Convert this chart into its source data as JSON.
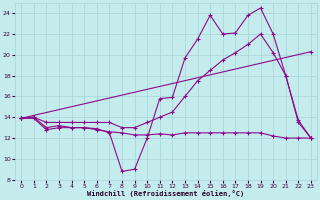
{
  "background_color": "#c5eced",
  "grid_color": "#a8d4d8",
  "line_color": "#8b0a8b",
  "xlim": [
    -0.5,
    23.5
  ],
  "ylim": [
    8,
    25
  ],
  "yticks": [
    8,
    10,
    12,
    14,
    16,
    18,
    20,
    22,
    24
  ],
  "xticks": [
    0,
    1,
    2,
    3,
    4,
    5,
    6,
    7,
    8,
    9,
    10,
    11,
    12,
    13,
    14,
    15,
    16,
    17,
    18,
    19,
    20,
    21,
    22,
    23
  ],
  "xlabel": "Windchill (Refroidissement éolien,°C)",
  "line1_x": [
    0,
    1,
    2,
    3,
    4,
    5,
    6,
    7,
    8,
    9,
    10,
    11,
    12,
    13,
    14,
    15,
    16,
    17,
    18,
    19,
    20,
    21,
    22,
    23
  ],
  "line1_y": [
    13.9,
    14.0,
    13.0,
    13.2,
    13.0,
    13.0,
    12.9,
    12.5,
    8.8,
    9.0,
    12.0,
    15.8,
    15.9,
    19.7,
    21.5,
    23.8,
    22.0,
    22.1,
    23.8,
    24.5,
    22.0,
    18.0,
    13.7,
    12.0
  ],
  "line2_x": [
    0,
    1,
    2,
    3,
    4,
    5,
    6,
    7,
    8,
    9,
    10,
    11,
    12,
    13,
    14,
    15,
    16,
    17,
    18,
    19,
    20,
    21,
    22,
    23
  ],
  "line2_y": [
    13.9,
    13.9,
    12.8,
    13.0,
    13.0,
    13.0,
    12.8,
    12.6,
    12.5,
    12.3,
    12.3,
    12.4,
    12.3,
    12.5,
    12.5,
    12.5,
    12.5,
    12.5,
    12.5,
    12.5,
    12.2,
    12.0,
    12.0,
    12.0
  ],
  "line3_x": [
    0,
    1,
    2,
    3,
    4,
    5,
    6,
    7,
    8,
    9,
    10,
    11,
    12,
    13,
    14,
    15,
    16,
    17,
    18,
    19,
    20,
    21,
    22,
    23
  ],
  "line3_y": [
    13.9,
    14.0,
    13.5,
    13.5,
    13.5,
    13.5,
    13.5,
    13.5,
    13.0,
    13.0,
    13.5,
    14.0,
    14.5,
    16.0,
    17.5,
    18.5,
    19.5,
    20.2,
    21.0,
    22.0,
    20.2,
    18.0,
    13.5,
    12.0
  ],
  "line4_x": [
    0,
    23
  ],
  "line4_y": [
    13.9,
    20.3
  ]
}
